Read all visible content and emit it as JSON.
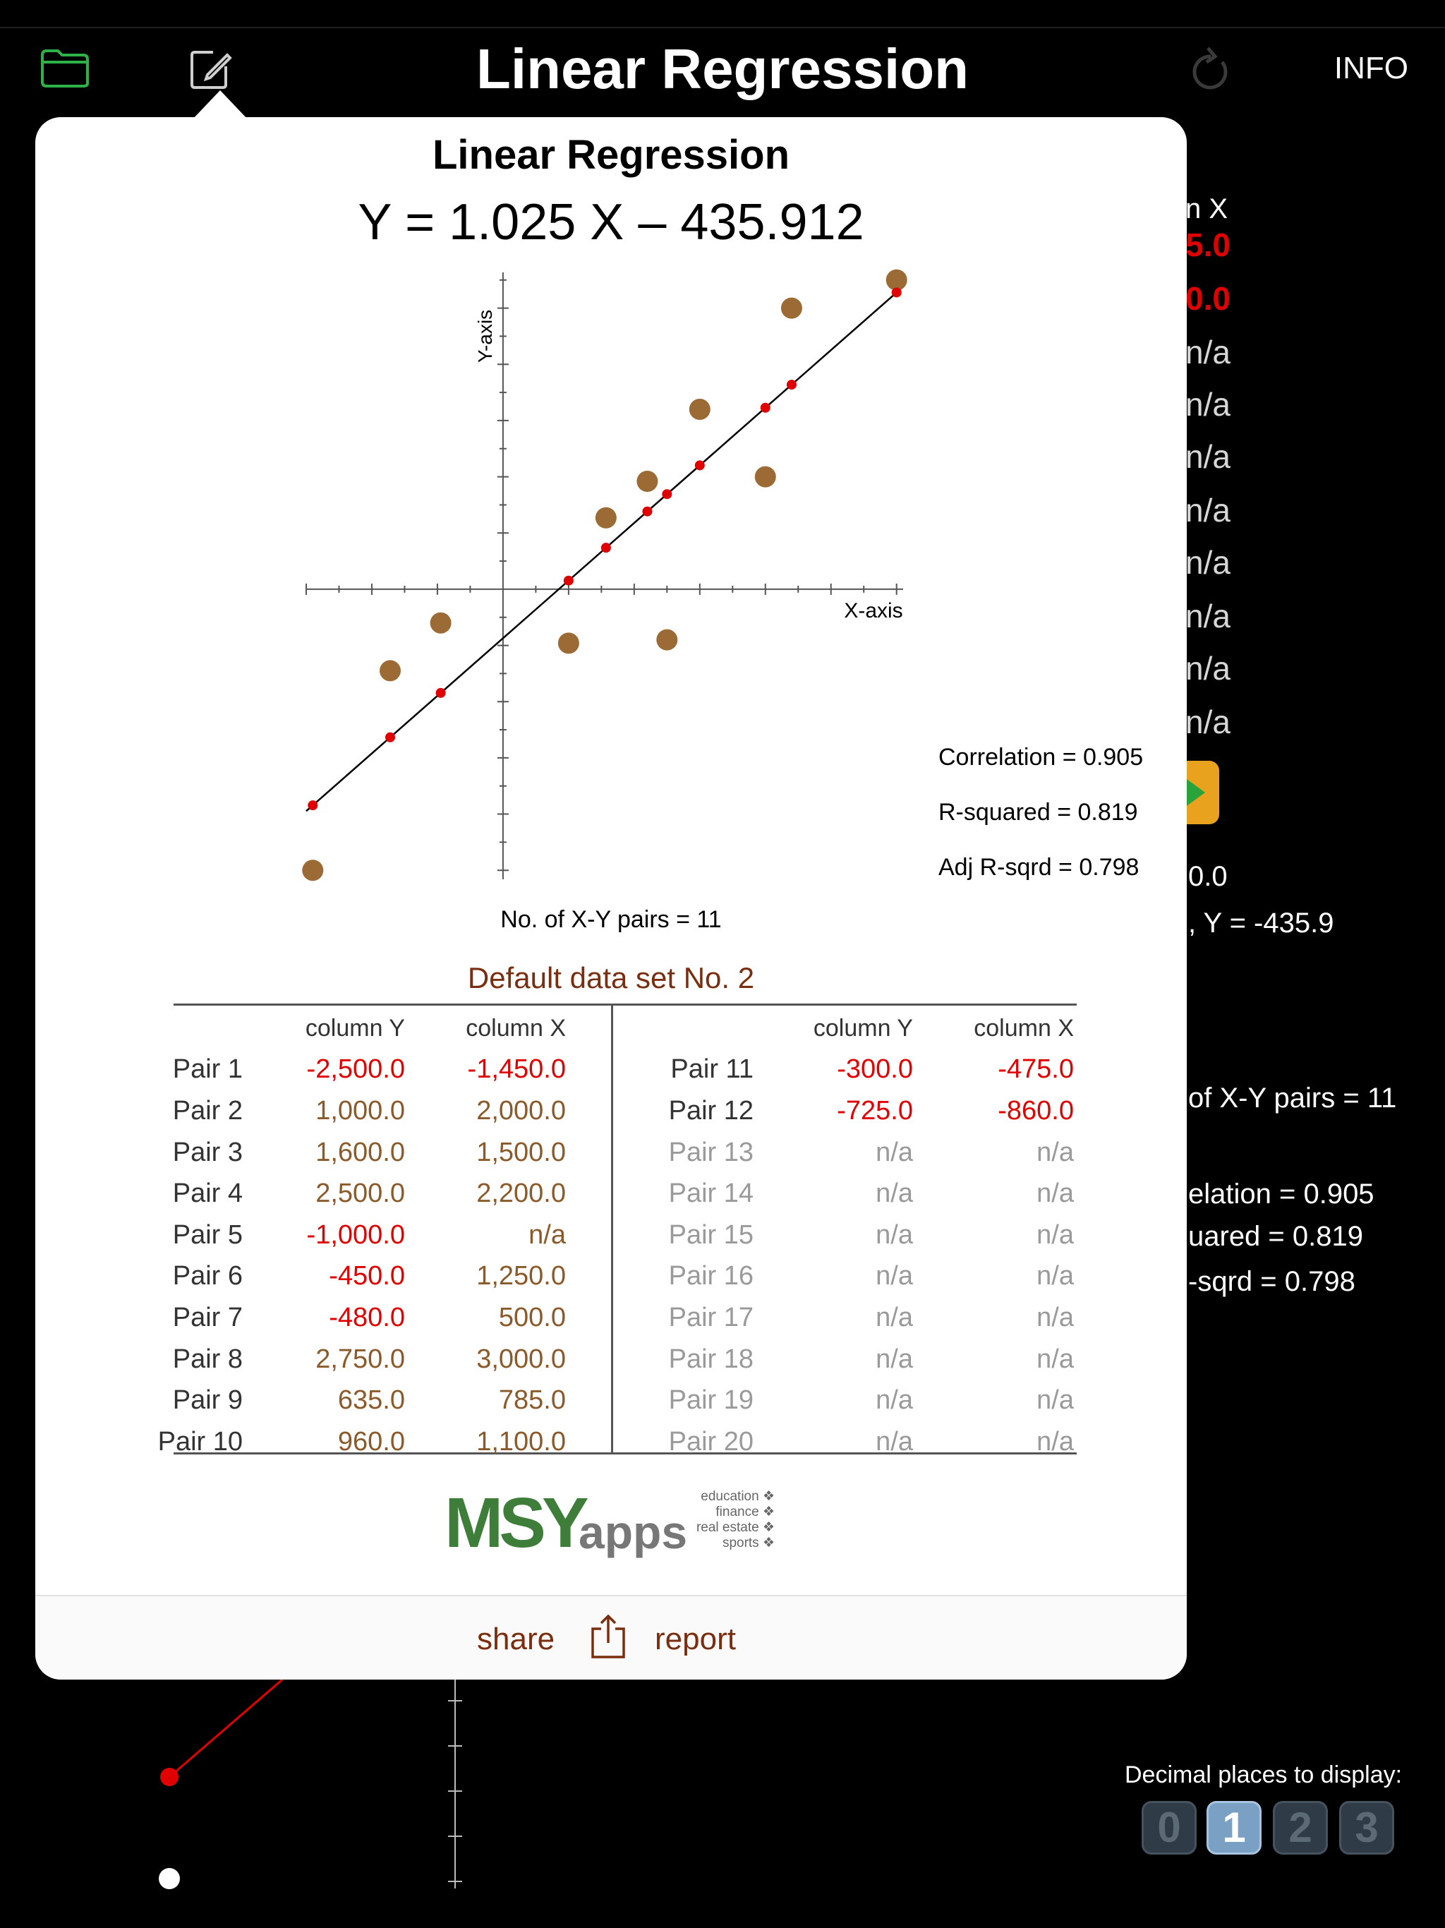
{
  "header": {
    "title": "Linear Regression",
    "info_label": "INFO"
  },
  "background": {
    "col_header_fragment": "n X",
    "red_fragments": [
      "5.0",
      "0.0"
    ],
    "na_fragments": [
      "n/a",
      "n/a",
      "n/a",
      "n/a",
      "n/a",
      "n/a",
      "n/a",
      "n/a"
    ],
    "intercept_fragment": "0.0",
    "y_fragment": ", Y = -435.9",
    "pairs_fragment": "of X-Y pairs = 11",
    "corr_fragment": "elation = 0.905",
    "rsq_fragment": "uared = 0.819",
    "adj_fragment": "-sqrd = 0.798",
    "decimal_label": "Decimal places to display:",
    "decimal_options": [
      "0",
      "1",
      "2",
      "3"
    ],
    "decimal_selected": "1"
  },
  "popover": {
    "title": "Linear Regression",
    "equation": "Y = 1.025 X – 435.912",
    "stats": {
      "correlation": "Correlation = 0.905",
      "rsquared": "R-squared = 0.819",
      "adj_rsquared": "Adj R-sqrd = 0.798"
    },
    "num_pairs": "No. of X-Y pairs = 11",
    "dataset_name": "Default data set No. 2",
    "share_label": "share",
    "report_label": "report"
  },
  "chart_data": {
    "type": "scatter",
    "xlabel": "X-axis",
    "ylabel": "Y-axis",
    "points": [
      {
        "x": -1450,
        "y": -2500
      },
      {
        "x": 2000,
        "y": 1000
      },
      {
        "x": 1500,
        "y": 1600
      },
      {
        "x": 2200,
        "y": 2500
      },
      {
        "x": 1250,
        "y": -450
      },
      {
        "x": 500,
        "y": -480
      },
      {
        "x": 3000,
        "y": 2750
      },
      {
        "x": 785,
        "y": 635
      },
      {
        "x": 1100,
        "y": 960
      },
      {
        "x": -475,
        "y": -300
      },
      {
        "x": -860,
        "y": -725
      }
    ],
    "regression_line": {
      "slope": 1.025,
      "intercept": -435.912
    },
    "fitted_x": [
      -1450,
      -860,
      -475,
      500,
      785,
      1100,
      1250,
      1500,
      2000,
      2200,
      3000
    ],
    "xlim": [
      -1500,
      3050
    ],
    "ylim": [
      -2530,
      2780
    ]
  },
  "table": {
    "headers": [
      "column Y",
      "column X"
    ],
    "left": [
      {
        "label": "Pair 1",
        "y": "-2,500.0",
        "x": "-1,450.0",
        "yc": "red",
        "xc": "red"
      },
      {
        "label": "Pair 2",
        "y": "1,000.0",
        "x": "2,000.0",
        "yc": "brown",
        "xc": "brown"
      },
      {
        "label": "Pair 3",
        "y": "1,600.0",
        "x": "1,500.0",
        "yc": "brown",
        "xc": "brown"
      },
      {
        "label": "Pair 4",
        "y": "2,500.0",
        "x": "2,200.0",
        "yc": "brown",
        "xc": "brown"
      },
      {
        "label": "Pair 5",
        "y": "-1,000.0",
        "x": "n/a",
        "yc": "red",
        "xc": "brown"
      },
      {
        "label": "Pair 6",
        "y": "-450.0",
        "x": "1,250.0",
        "yc": "red",
        "xc": "brown"
      },
      {
        "label": "Pair 7",
        "y": "-480.0",
        "x": "500.0",
        "yc": "red",
        "xc": "brown"
      },
      {
        "label": "Pair 8",
        "y": "2,750.0",
        "x": "3,000.0",
        "yc": "brown",
        "xc": "brown"
      },
      {
        "label": "Pair 9",
        "y": "635.0",
        "x": "785.0",
        "yc": "brown",
        "xc": "brown"
      },
      {
        "label": "Pair 10",
        "y": "960.0",
        "x": "1,100.0",
        "yc": "brown",
        "xc": "brown"
      }
    ],
    "right": [
      {
        "label": "Pair 11",
        "y": "-300.0",
        "x": "-475.0",
        "yc": "red",
        "xc": "red"
      },
      {
        "label": "Pair 12",
        "y": "-725.0",
        "x": "-860.0",
        "yc": "red",
        "xc": "red"
      },
      {
        "label": "Pair 13",
        "y": "n/a",
        "x": "n/a",
        "yc": "gray",
        "xc": "gray"
      },
      {
        "label": "Pair 14",
        "y": "n/a",
        "x": "n/a",
        "yc": "gray",
        "xc": "gray"
      },
      {
        "label": "Pair 15",
        "y": "n/a",
        "x": "n/a",
        "yc": "gray",
        "xc": "gray"
      },
      {
        "label": "Pair 16",
        "y": "n/a",
        "x": "n/a",
        "yc": "gray",
        "xc": "gray"
      },
      {
        "label": "Pair 17",
        "y": "n/a",
        "x": "n/a",
        "yc": "gray",
        "xc": "gray"
      },
      {
        "label": "Pair 18",
        "y": "n/a",
        "x": "n/a",
        "yc": "gray",
        "xc": "gray"
      },
      {
        "label": "Pair 19",
        "y": "n/a",
        "x": "n/a",
        "yc": "gray",
        "xc": "gray"
      },
      {
        "label": "Pair 20",
        "y": "n/a",
        "x": "n/a",
        "yc": "gray",
        "xc": "gray"
      }
    ]
  },
  "logo": {
    "brand_main": "MSY",
    "brand_sub": "apps",
    "tags": [
      "education ❖",
      "finance ❖",
      "real estate ❖",
      "sports ❖"
    ]
  },
  "colors": {
    "red": "#e00000",
    "brown": "#8b5a2b",
    "gray": "#9a9a9a",
    "dot": "#9c6a34",
    "folder_green": "#2fb14a",
    "logo_green": "#3f7d3a",
    "logo_gray": "#777777"
  }
}
